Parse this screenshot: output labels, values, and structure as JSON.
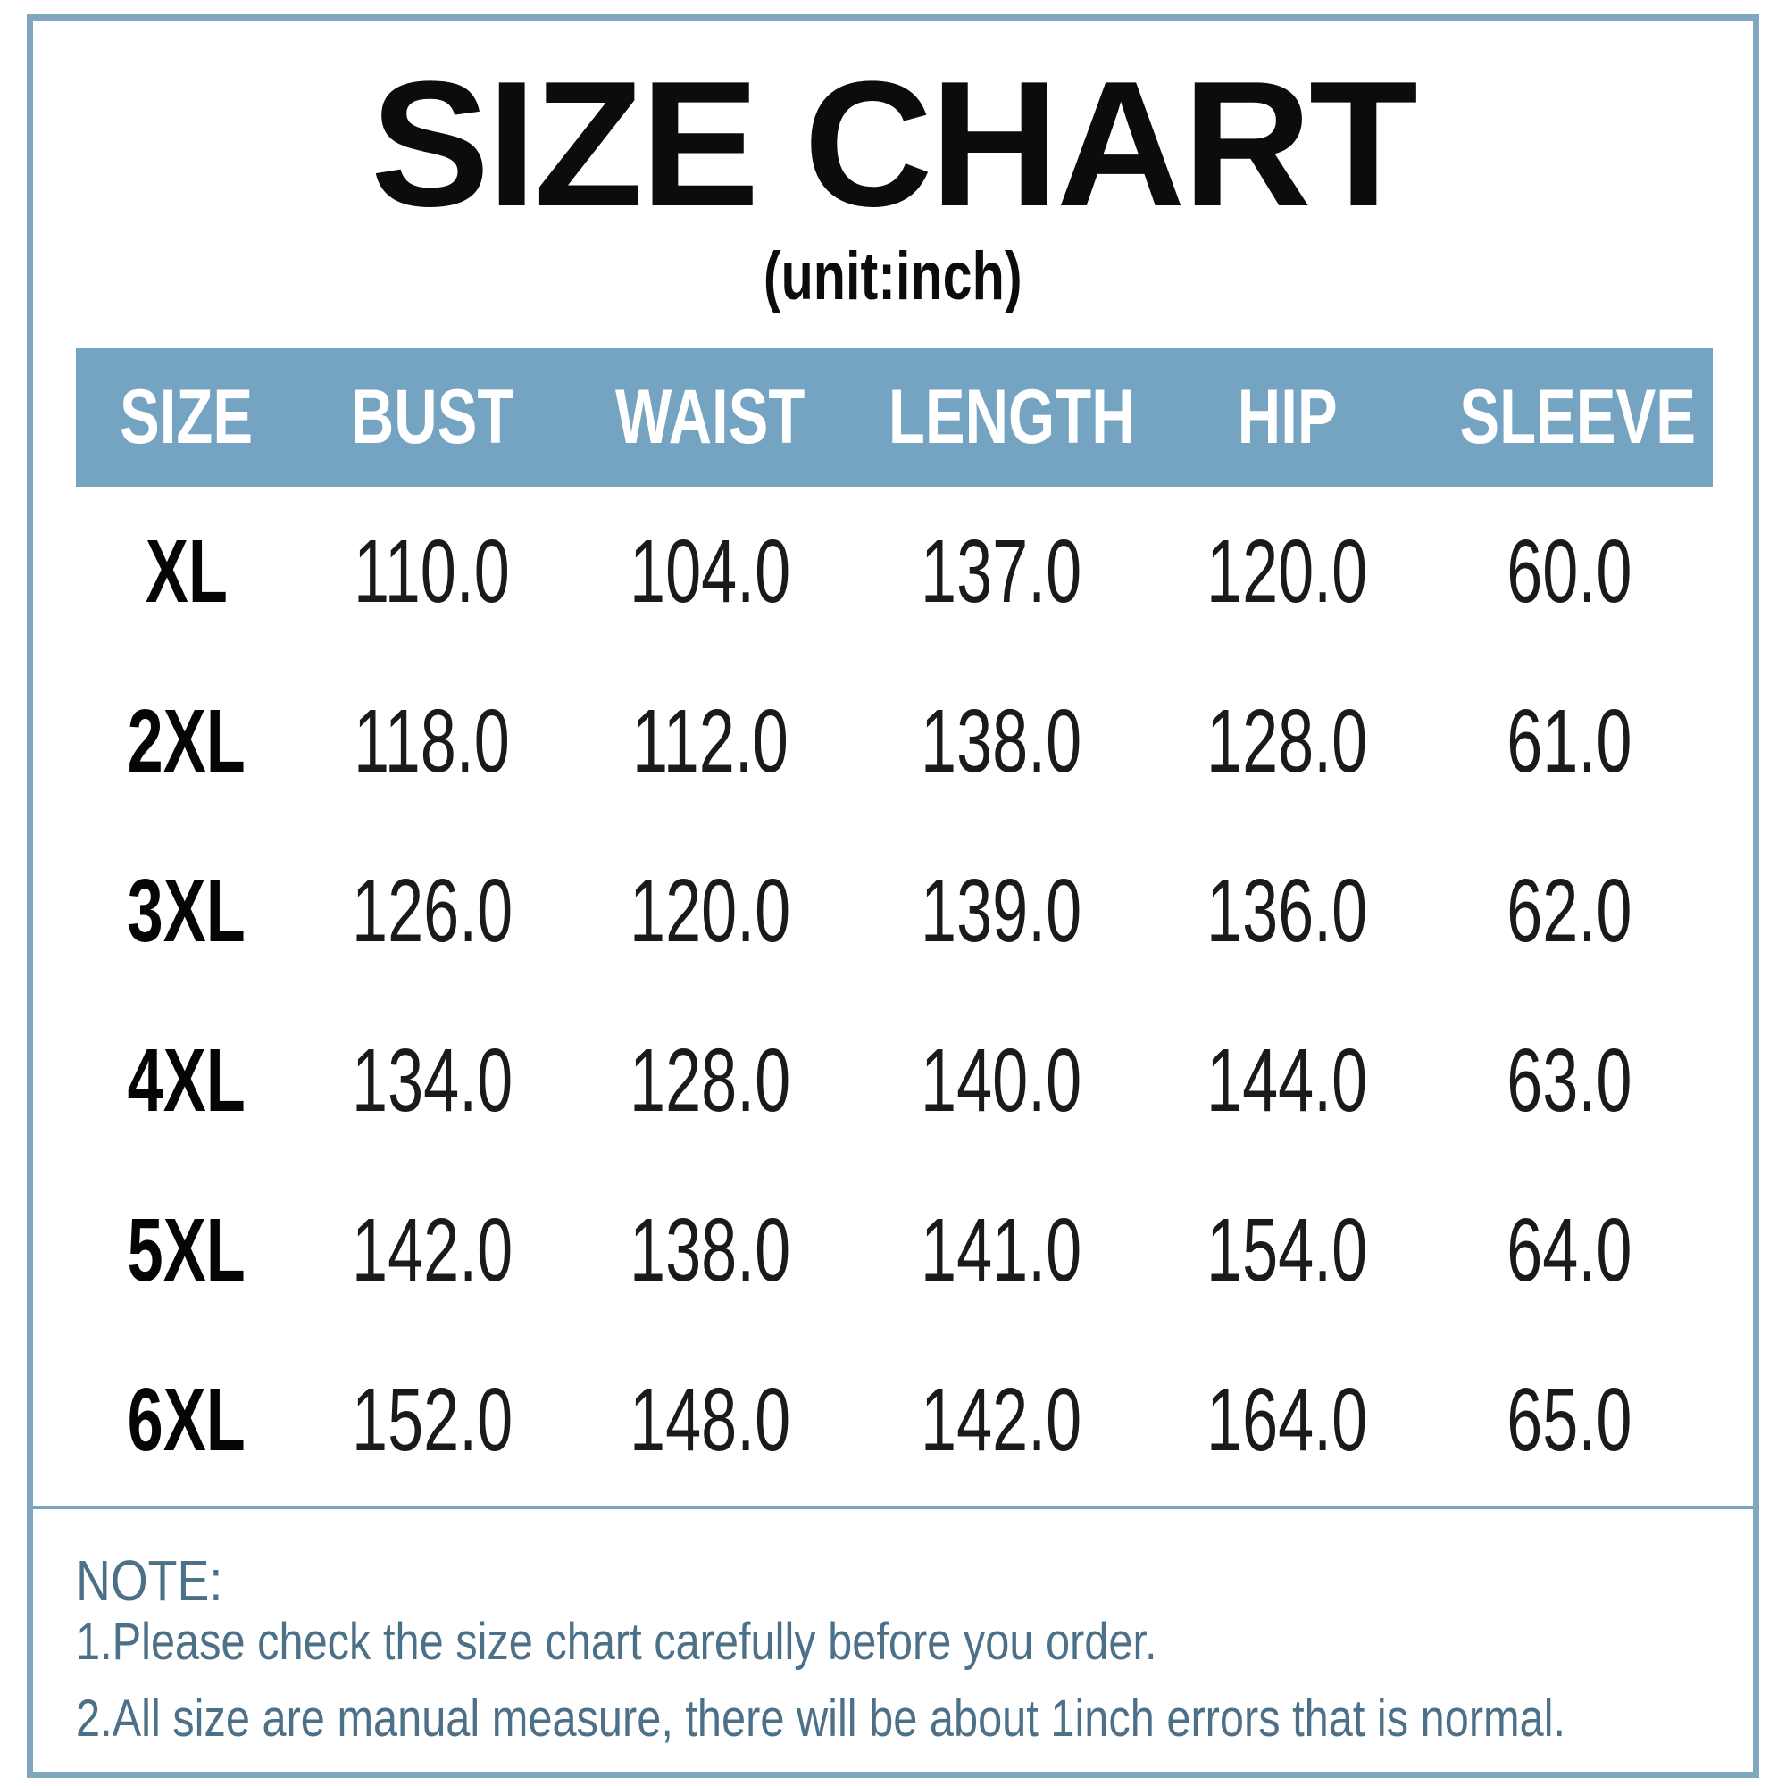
{
  "title": "SIZE CHART",
  "subtitle": "(unit:inch)",
  "table": {
    "headers": [
      "SIZE",
      "BUST",
      "WAIST",
      "LENGTH",
      "HIP",
      "SLEEVE"
    ],
    "rows": [
      [
        "XL",
        "110.0",
        "104.0",
        "137.0",
        "120.0",
        "60.0"
      ],
      [
        "2XL",
        "118.0",
        "112.0",
        "138.0",
        "128.0",
        "61.0"
      ],
      [
        "3XL",
        "126.0",
        "120.0",
        "139.0",
        "136.0",
        "62.0"
      ],
      [
        "4XL",
        "134.0",
        "128.0",
        "140.0",
        "144.0",
        "63.0"
      ],
      [
        "5XL",
        "142.0",
        "138.0",
        "141.0",
        "154.0",
        "64.0"
      ],
      [
        "6XL",
        "152.0",
        "148.0",
        "142.0",
        "164.0",
        "65.0"
      ]
    ]
  },
  "note": {
    "heading": "NOTE:",
    "lines": [
      "1.Please check the size chart carefully before you order.",
      "2.All size are manual measure, there will be about 1inch errors that is normal."
    ]
  },
  "colors": {
    "accent_blue": "#74a4c2",
    "border_blue": "#7fa8c0",
    "note_text": "#4d7089",
    "table_text": "#1a1a1a",
    "header_text": "#ffffff"
  },
  "chart_data": {
    "type": "table",
    "title": "SIZE CHART",
    "subtitle": "(unit:inch)",
    "unit": "inch",
    "columns": [
      "SIZE",
      "BUST",
      "WAIST",
      "LENGTH",
      "HIP",
      "SLEEVE"
    ],
    "rows": [
      [
        "XL",
        110.0,
        104.0,
        137.0,
        120.0,
        60.0
      ],
      [
        "2XL",
        118.0,
        112.0,
        138.0,
        128.0,
        61.0
      ],
      [
        "3XL",
        126.0,
        120.0,
        139.0,
        136.0,
        62.0
      ],
      [
        "4XL",
        134.0,
        128.0,
        140.0,
        144.0,
        63.0
      ],
      [
        "5XL",
        142.0,
        138.0,
        141.0,
        154.0,
        64.0
      ],
      [
        "6XL",
        152.0,
        148.0,
        142.0,
        164.0,
        65.0
      ]
    ],
    "notes": [
      "1.Please check the size chart carefully before you order.",
      "2.All size are manual measure, there will be about 1inch errors that is normal."
    ]
  }
}
